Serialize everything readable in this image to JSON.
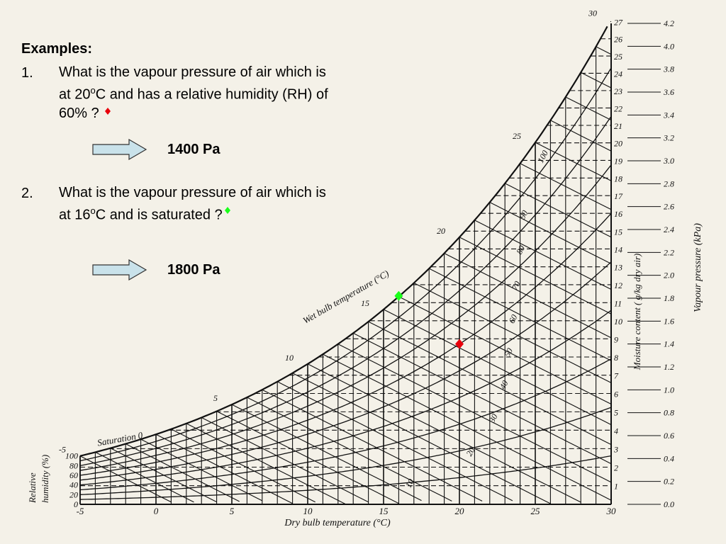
{
  "slide": {
    "heading": "Examples:",
    "questions": [
      {
        "number": "1.",
        "text": "What is the vapour pressure of air which is at 20oC and has a relative humidity (RH) of 60% ?",
        "line1": "What is the vapour pressure of air which is",
        "line2_pre": "at 20",
        "line2_sup": "o",
        "line2_post": "C and has a relative humidity (RH) of",
        "line3": "60% ?",
        "answer": "1400 Pa",
        "marker_color": "#e8000b"
      },
      {
        "number": "2.",
        "text": "What is the vapour pressure of air which is at 16oC and is saturated ?",
        "line1": "What is the vapour pressure of air which is",
        "line2_pre": "at 16",
        "line2_sup": "o",
        "line2_post": "C and is saturated ?",
        "answer": "1800 Pa",
        "marker_color": "#1aff1a"
      }
    ],
    "arrow_fill": "#c9e2ea",
    "arrow_stroke": "#333333"
  },
  "chart_data": {
    "type": "psychrometric",
    "xlabel": "Dry bulb temperature (°C)",
    "x_ticks": [
      -5,
      0,
      5,
      10,
      15,
      20,
      25,
      30
    ],
    "xlim": [
      -5,
      30
    ],
    "moisture_label": "Moisture content ( g/kg dry air)",
    "moisture_ticks": [
      1,
      2,
      3,
      4,
      5,
      6,
      7,
      8,
      9,
      10,
      11,
      12,
      13,
      14,
      15,
      16,
      17,
      18,
      19,
      20,
      21,
      22,
      23,
      24,
      25,
      26,
      27
    ],
    "vapour_label": "Vapour pressure (kPa)",
    "vapour_ticks": [
      "0.0",
      "0.2",
      "0.4",
      "0.6",
      "0.8",
      "1.0",
      "1.2",
      "1.4",
      "1.6",
      "1.8",
      "2.0",
      "2.2",
      "2.4",
      "2.6",
      "2.8",
      "3.0",
      "3.2",
      "3.4",
      "3.6",
      "3.8",
      "4.0",
      "4.2"
    ],
    "vapour_lim": [
      0,
      4.2
    ],
    "rh_axis_label_line1": "Relative",
    "rh_axis_label_line2": "humidity (%)",
    "rh_ticks": [
      0,
      20,
      40,
      60,
      80,
      100
    ],
    "rh_curves": [
      10,
      20,
      30,
      40,
      50,
      60,
      70,
      80,
      90,
      100
    ],
    "wet_bulb_label": "Wet bulb temperature (°C)",
    "wet_bulb_labels": [
      "-5",
      "5",
      "10",
      "15",
      "20",
      "25",
      "30"
    ],
    "saturation_label": "Saturation",
    "saturation_zero": "0",
    "points": [
      {
        "name": "example-1",
        "x": 20,
        "vapour_kpa": 1.4,
        "color": "#e8000b"
      },
      {
        "name": "example-2",
        "x": 16,
        "vapour_kpa": 1.82,
        "color": "#1aff1a"
      }
    ]
  }
}
